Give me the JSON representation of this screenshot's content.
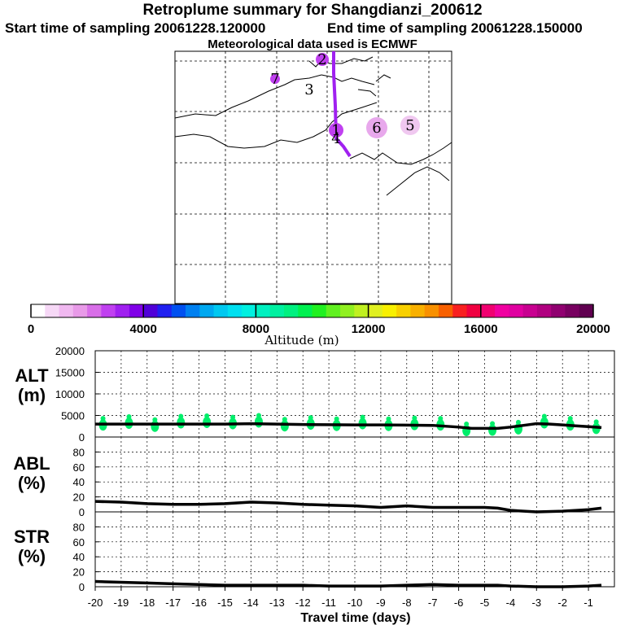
{
  "header": {
    "title": "Retroplume summary for Shangdianzi_200612",
    "start_label": "Start time of sampling 20061228.120000",
    "end_label": "End time of sampling 20061228.150000",
    "met_label": "Meteorological data used is ECMWF"
  },
  "map": {
    "cluster_labels": [
      "1",
      "2",
      "3",
      "4",
      "5",
      "6",
      "7"
    ]
  },
  "colorbar": {
    "ticks": [
      "0",
      "4000",
      "8000",
      "12000",
      "16000",
      "20000"
    ],
    "label": "Altitude (m)",
    "colors": [
      "#ffffff",
      "#f6d8f6",
      "#f0b8f0",
      "#e89ae8",
      "#d86ee8",
      "#c040f0",
      "#a020f0",
      "#8000e8",
      "#5000d8",
      "#2020f0",
      "#0050f0",
      "#0080f0",
      "#00a8f0",
      "#00c8f0",
      "#00e0f0",
      "#00f0e0",
      "#00f0c0",
      "#00f0a0",
      "#00f080",
      "#00f050",
      "#20f020",
      "#60f020",
      "#90f020",
      "#c0f020",
      "#e0f020",
      "#f8f000",
      "#f8d000",
      "#f8b000",
      "#f89000",
      "#f86000",
      "#f82020",
      "#f00040",
      "#f00070",
      "#f000a0",
      "#e000a0",
      "#c80090",
      "#b00080",
      "#900070",
      "#780060",
      "#600050"
    ]
  },
  "chart_data": [
    {
      "type": "line",
      "name": "ALT",
      "ylabel": "ALT\n(m)",
      "ylabel_line1": "ALT",
      "ylabel_line2": "(m)",
      "ylim": [
        0,
        20000
      ],
      "yticks": [
        0,
        5000,
        10000,
        15000,
        20000
      ],
      "ytick_labels": [
        "0",
        "5000",
        "10000",
        "15000",
        "20000"
      ],
      "x": [
        -20,
        -19,
        -18,
        -17,
        -16,
        -15,
        -14,
        -13,
        -12,
        -11,
        -10,
        -9,
        -8,
        -7,
        -6,
        -5.5,
        -5,
        -4.5,
        -4,
        -3.5,
        -3,
        -2.5,
        -2,
        -1.5,
        -1,
        -0.5
      ],
      "values": [
        3000,
        3000,
        3000,
        3000,
        3000,
        3000,
        3100,
        3000,
        2900,
        2850,
        2800,
        2800,
        2750,
        2700,
        2300,
        2000,
        2000,
        2000,
        2300,
        2700,
        3100,
        3000,
        2800,
        2600,
        2400,
        2200
      ],
      "cluster_x": [
        -19.7,
        -18.7,
        -17.7,
        -16.7,
        -15.7,
        -14.7,
        -13.7,
        -12.7,
        -11.7,
        -10.7,
        -9.7,
        -8.7,
        -7.7,
        -6.7,
        -5.7,
        -4.7,
        -3.7,
        -2.7,
        -1.7,
        -0.7
      ],
      "cluster_y": [
        2800,
        3200,
        2500,
        3300,
        3400,
        3100,
        3500,
        2600,
        3000,
        2700,
        3100,
        2700,
        2900,
        2800,
        1500,
        1600,
        1900,
        3300,
        2800,
        2000
      ]
    },
    {
      "type": "line",
      "name": "ABL",
      "ylabel_line1": "ABL",
      "ylabel_line2": "(%)",
      "ylim": [
        0,
        100
      ],
      "yticks": [
        0,
        20,
        40,
        60,
        80
      ],
      "ytick_labels": [
        "0",
        "20",
        "40",
        "60",
        "80"
      ],
      "x": [
        -20,
        -19,
        -18,
        -17,
        -16,
        -15,
        -14,
        -13,
        -12,
        -11,
        -10,
        -9,
        -8,
        -7,
        -6,
        -5,
        -4.5,
        -4,
        -3,
        -2,
        -1,
        -0.5
      ],
      "values": [
        14,
        13,
        11,
        10,
        10,
        11,
        13,
        12,
        10,
        9,
        8,
        6,
        8,
        6,
        6,
        6,
        5,
        2,
        0,
        1,
        3,
        5
      ]
    },
    {
      "type": "line",
      "name": "STR",
      "ylabel_line1": "STR",
      "ylabel_line2": "(%)",
      "ylim": [
        0,
        100
      ],
      "yticks": [
        0,
        20,
        40,
        60,
        80
      ],
      "ytick_labels": [
        "0",
        "20",
        "40",
        "60",
        "80"
      ],
      "x": [
        -20,
        -19,
        -18,
        -17,
        -16,
        -15,
        -14,
        -13,
        -12,
        -11,
        -10,
        -9,
        -8,
        -7,
        -6,
        -5,
        -4.5,
        -4,
        -3,
        -2,
        -1,
        -0.5
      ],
      "values": [
        7,
        6,
        5,
        4,
        3,
        2,
        2,
        2,
        2,
        1,
        1,
        1,
        2,
        3,
        2,
        2,
        2,
        1,
        0,
        0,
        1,
        2
      ]
    }
  ],
  "xaxis": {
    "ticks": [
      -20,
      -19,
      -18,
      -17,
      -16,
      -15,
      -14,
      -13,
      -12,
      -11,
      -10,
      -9,
      -8,
      -7,
      -6,
      -5,
      -4,
      -3,
      -2,
      -1
    ],
    "tick_labels": [
      "-20",
      "-19",
      "-18",
      "-17",
      "-16",
      "-15",
      "-14",
      "-13",
      "-12",
      "-11",
      "-10",
      "-9",
      "-8",
      "-7",
      "-6",
      "-5",
      "-4",
      "-3",
      "-2",
      "-1"
    ],
    "label": "Travel time (days)",
    "xlim": [
      -20,
      0
    ]
  }
}
